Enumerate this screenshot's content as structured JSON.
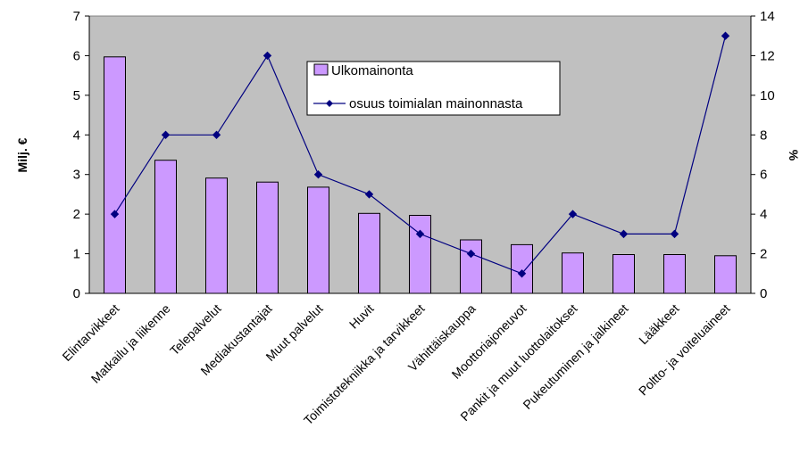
{
  "chart_data": {
    "type": "bar",
    "categories": [
      "Elintarvikkeet",
      "Matkailu ja liikenne",
      "Telepalvelut",
      "Mediakustantajat",
      "Muut palvelut",
      "Huvit",
      "Toimistotekniikka ja tarvikkeet",
      "Vähittäiskauppa",
      "Moottoriajoneuvot",
      "Pankit ja muut luottolaitokset",
      "Pukeutuminen ja jalkineet",
      "Lääkkeet",
      "Poltto- ja voiteluaineet"
    ],
    "series": [
      {
        "name": "Ulkomainonta",
        "type": "bar",
        "axis": "left",
        "color": "#cc99ff",
        "values": [
          5.97,
          3.36,
          2.91,
          2.81,
          2.68,
          2.02,
          1.97,
          1.35,
          1.23,
          1.02,
          0.98,
          0.98,
          0.95
        ]
      },
      {
        "name": "osuus toimialan mainonnasta",
        "type": "line",
        "axis": "right",
        "color": "#000080",
        "values": [
          4,
          8,
          8,
          12,
          6,
          5,
          3,
          2,
          1,
          4,
          3,
          3,
          13
        ]
      }
    ],
    "ylabel": "Milj. €",
    "y2label": "%",
    "ylim": [
      0,
      7
    ],
    "y2lim": [
      0,
      14
    ],
    "yticks": [
      "0",
      "1",
      "2",
      "3",
      "4",
      "5",
      "6",
      "7"
    ],
    "y2ticks": [
      "0",
      "2",
      "4",
      "6",
      "8",
      "10",
      "12",
      "14"
    ],
    "plot_background": "#c0c0c0",
    "grid": false,
    "legend_position": "top-center"
  }
}
